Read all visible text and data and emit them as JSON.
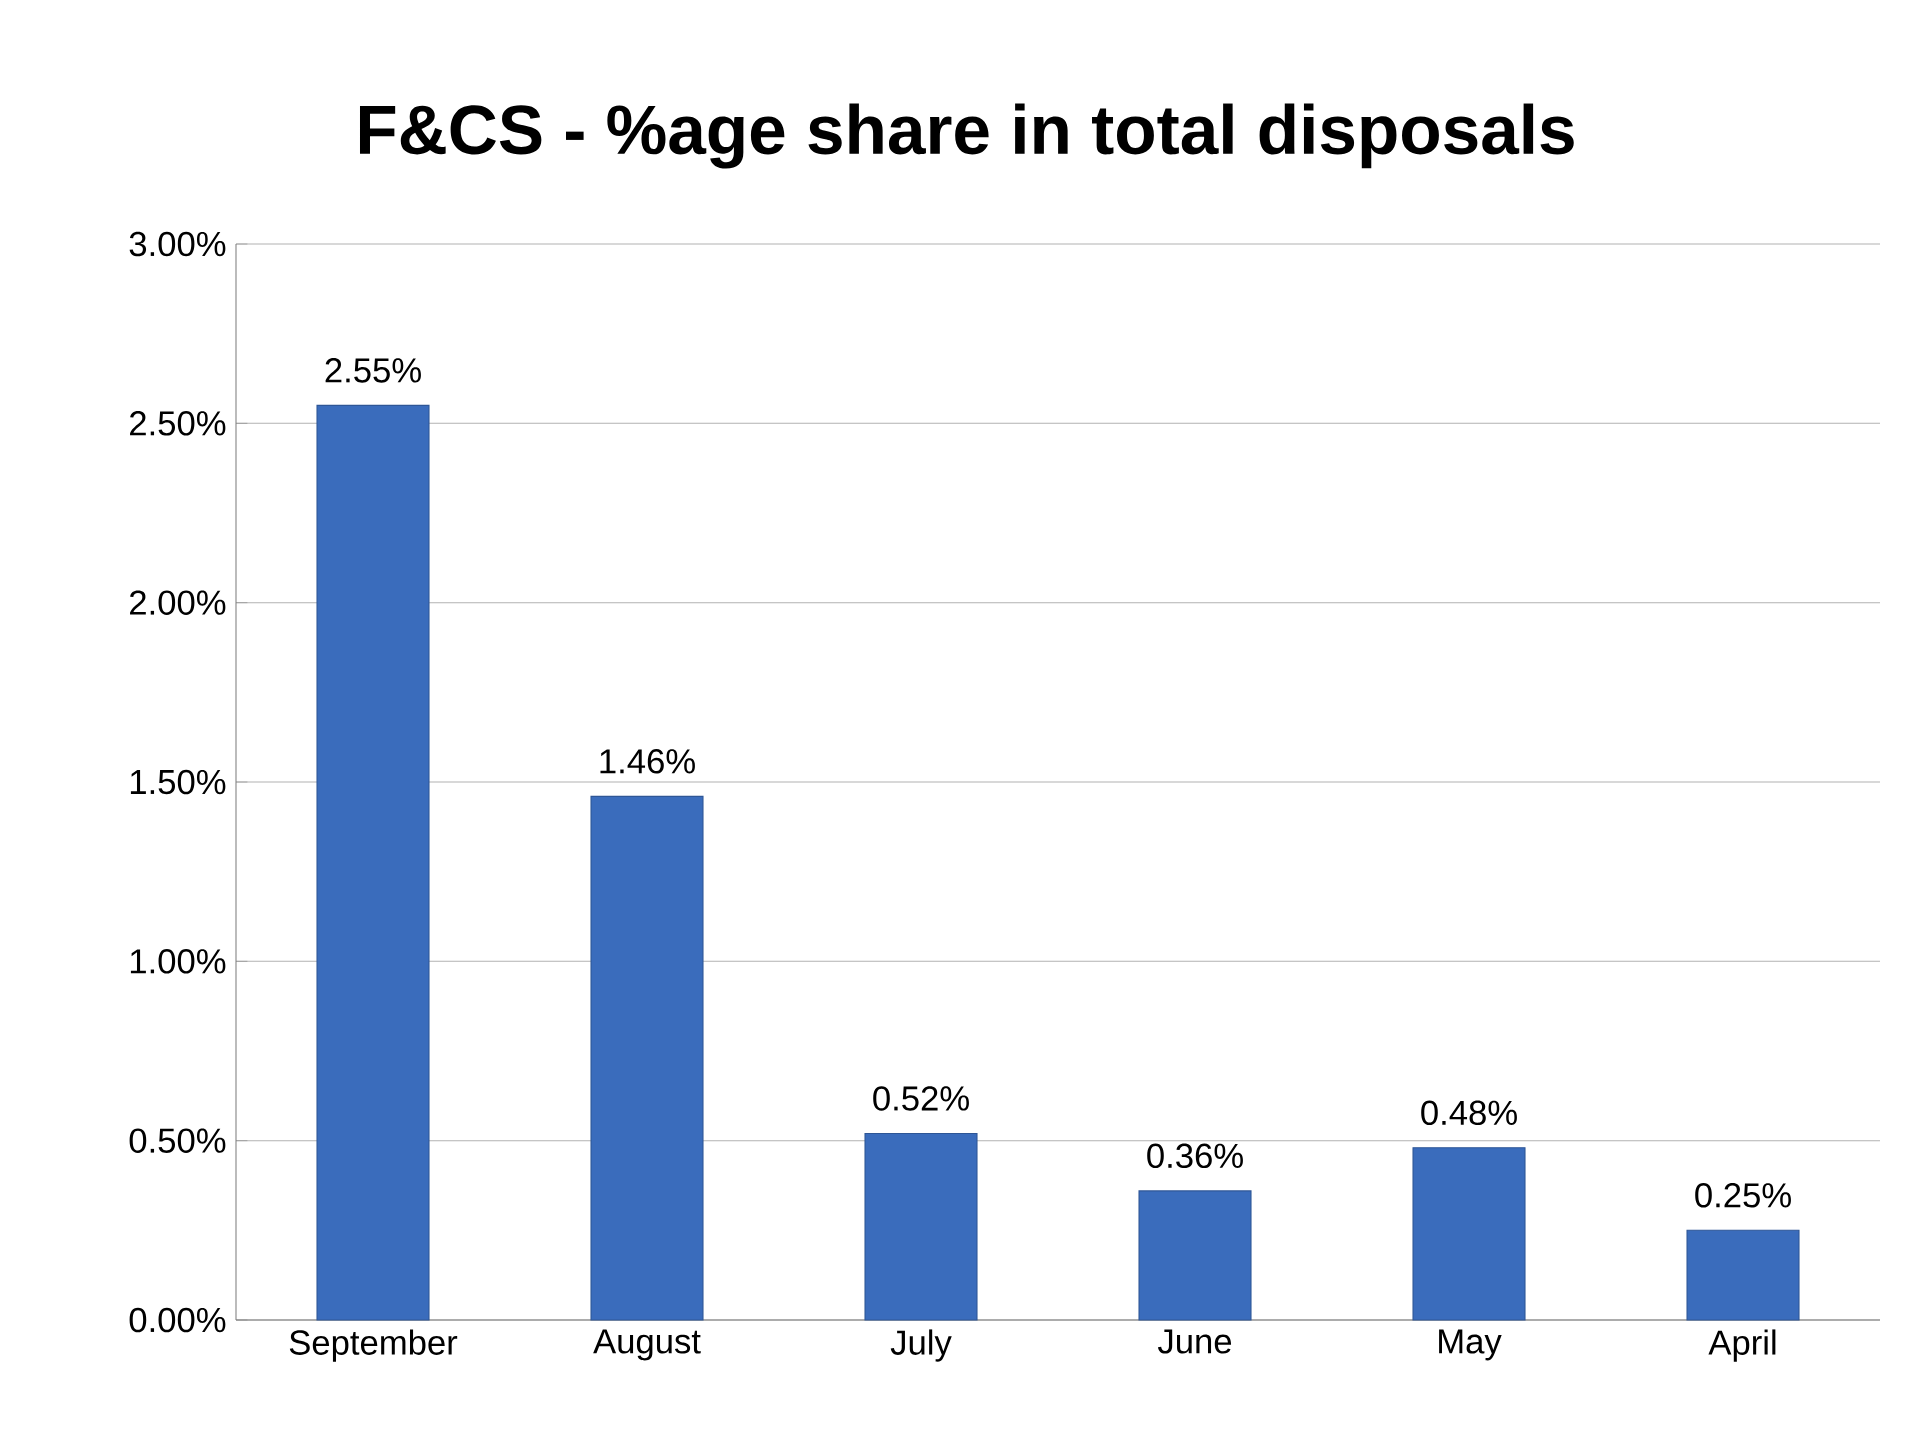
{
  "chart_data": {
    "type": "bar",
    "title": "F&CS - %age share in total disposals",
    "categories": [
      "September",
      "August",
      "July",
      "June",
      "May",
      "April"
    ],
    "values": [
      2.55,
      1.46,
      0.52,
      0.36,
      0.48,
      0.25
    ],
    "value_labels": [
      "2.55%",
      "1.46%",
      "0.52%",
      "0.36%",
      "0.48%",
      "0.25%"
    ],
    "color": "#3a6cbc",
    "ylim": [
      0,
      3
    ],
    "yticks": [
      {
        "value": 0,
        "label": "0.00%"
      },
      {
        "value": 0.5,
        "label": "0.50%"
      },
      {
        "value": 1,
        "label": "1.00%"
      },
      {
        "value": 1.5,
        "label": "1.50%"
      },
      {
        "value": 2,
        "label": "2.00%"
      },
      {
        "value": 2.5,
        "label": "2.50%"
      },
      {
        "value": 3,
        "label": "3.00%"
      }
    ],
    "grid": "y"
  }
}
